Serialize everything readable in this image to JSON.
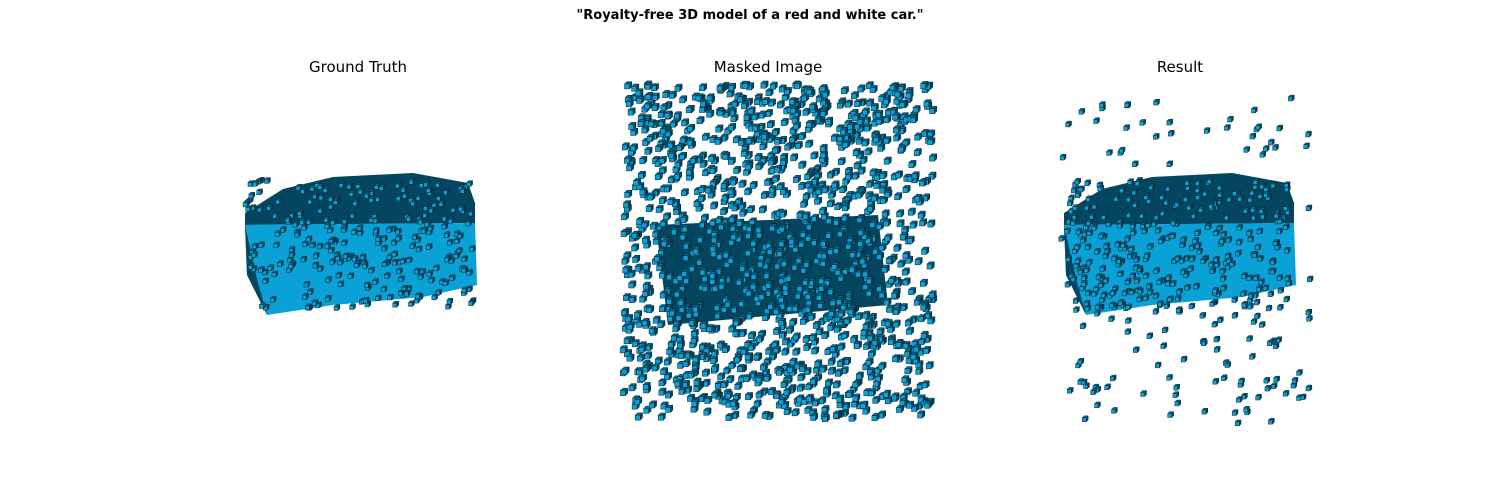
{
  "figure": {
    "title": "\"Royalty-free 3D model of a red and white car.\""
  },
  "panels": [
    {
      "title": "Ground Truth"
    },
    {
      "title": "Masked Image"
    },
    {
      "title": "Result"
    }
  ],
  "colors": {
    "voxel_front": "#0aa2d6",
    "voxel_top": "#0b6a8c",
    "voxel_side": "#04465f",
    "voxel_edge": "#06222e",
    "background": "#ffffff"
  }
}
